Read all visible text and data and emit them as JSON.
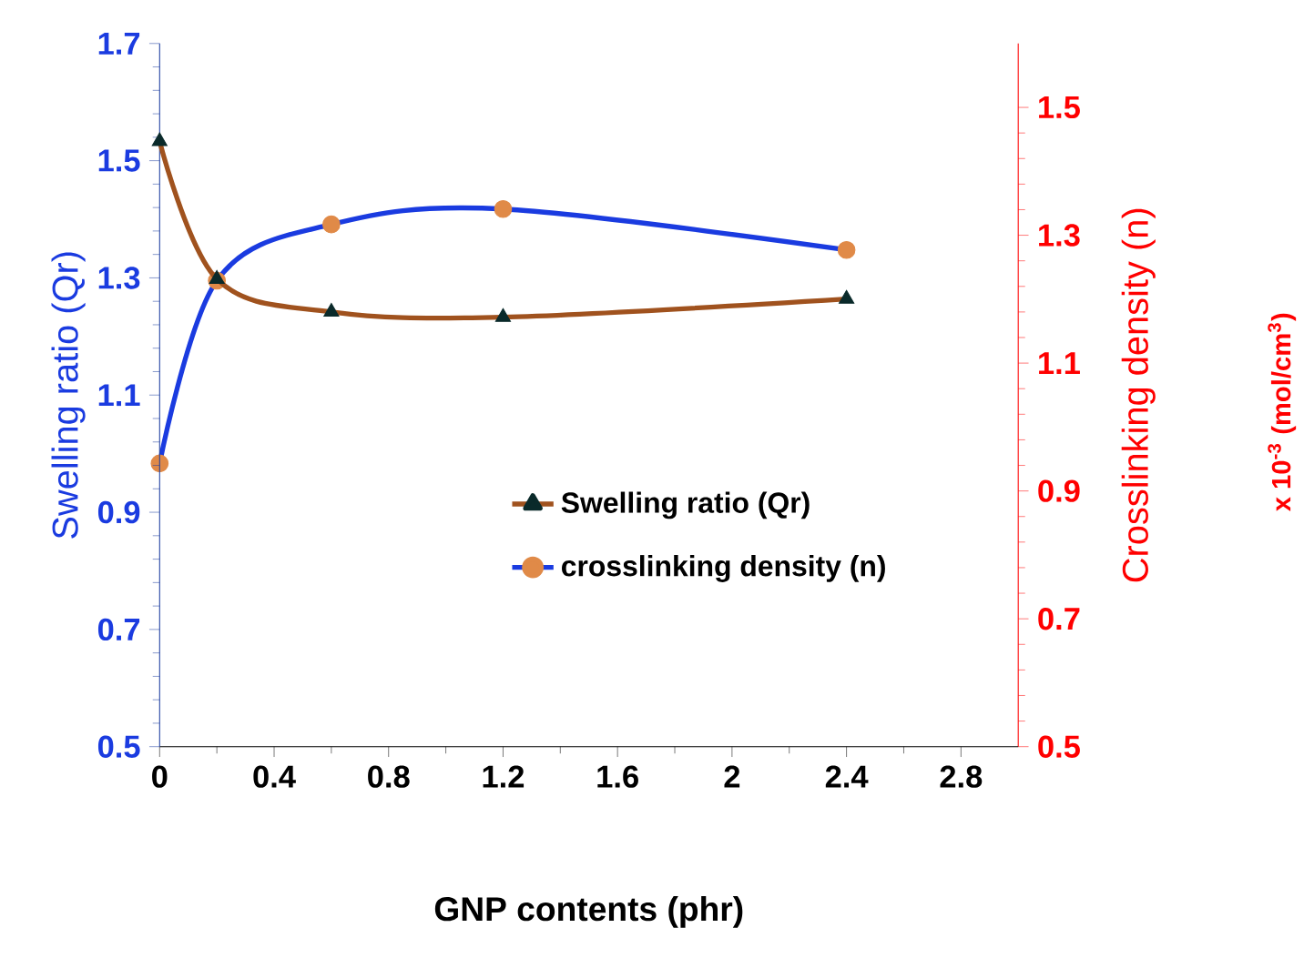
{
  "chart_data": {
    "type": "line",
    "xlabel": "GNP contents (phr)",
    "ylabel": "Swelling ratio (Qr)",
    "y2label": "Crosslinking density (n)",
    "annotations": [
      "x 10$^{-3}$ (mol/cm$^{3}$)"
    ],
    "x": [
      0,
      0.2,
      0.6,
      1.2,
      2.4
    ],
    "series": [
      {
        "name": "Swelling ratio (Qr)",
        "color": "#a0521e",
        "colors": [
          "#0a2a2a",
          "#0a2a2a",
          "#0a2a2a",
          "#0a2a2a",
          "#0a2a2a"
        ],
        "marker": "triangle",
        "values": [
          1.533,
          1.298,
          1.242,
          1.233,
          1.264
        ]
      },
      {
        "name": "crosslinking density (n)",
        "color": "#1a3be0",
        "colors": [
          "#e08a48",
          "#e08a48",
          "#e08a48",
          "#e08a48",
          "#e08a48"
        ],
        "marker": "circle",
        "axis": "y2",
        "values": [
          0.943,
          1.229,
          1.317,
          1.341,
          1.277
        ]
      }
    ],
    "xlim": [
      0,
      3.0
    ],
    "xticks": [
      0,
      0.4,
      0.8,
      1.2,
      1.6,
      2,
      2.4,
      2.8
    ],
    "ylim": [
      0.5,
      1.7
    ],
    "yticks": [
      0.5,
      0.7,
      0.9,
      1.1,
      1.3,
      1.5,
      1.7
    ],
    "y2lim": [
      0.5,
      1.6
    ],
    "y2ticks": [
      0.5,
      0.7,
      0.9,
      1.1,
      1.3,
      1.5
    ],
    "grid": false,
    "legend": "center",
    "line_style": "solid"
  }
}
